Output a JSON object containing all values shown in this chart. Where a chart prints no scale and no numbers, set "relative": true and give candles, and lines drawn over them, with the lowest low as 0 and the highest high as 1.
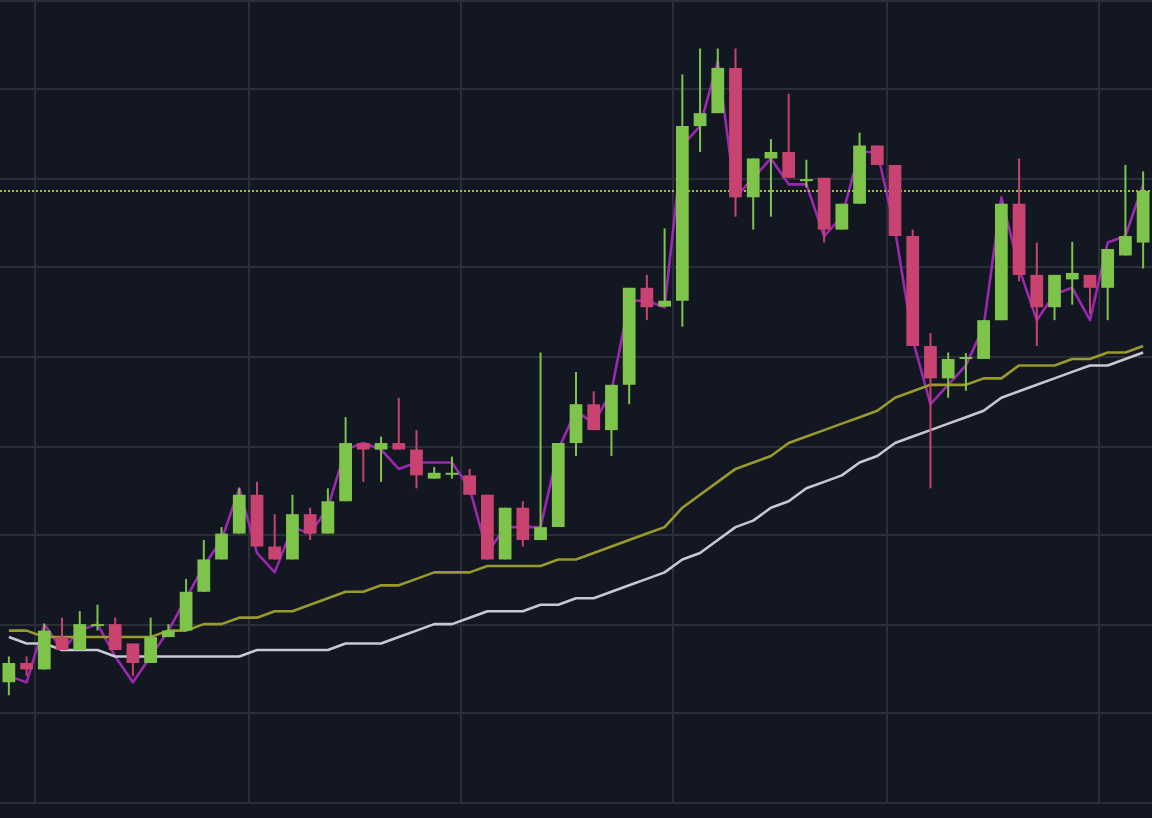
{
  "chart_data": {
    "type": "candlestick",
    "relative": true,
    "grid": true,
    "categories": [
      null,
      null,
      null,
      null,
      null,
      null,
      null,
      null,
      null,
      null,
      null,
      null,
      null,
      null,
      null,
      null,
      null,
      null,
      null,
      null,
      null,
      null,
      null,
      null,
      null,
      null,
      null,
      null,
      null,
      null,
      null,
      null,
      null,
      null,
      null,
      null,
      null,
      null,
      null,
      null,
      null,
      null,
      null,
      null,
      null,
      null,
      null,
      null,
      null,
      null,
      null,
      null,
      null,
      null,
      null,
      null,
      null,
      null,
      null,
      null,
      null,
      null,
      null,
      null,
      null
    ],
    "ohlc": [
      [
        0.02,
        0.06,
        0.0,
        0.05
      ],
      [
        0.05,
        0.06,
        0.03,
        0.04
      ],
      [
        0.04,
        0.11,
        0.04,
        0.1
      ],
      [
        0.09,
        0.12,
        0.07,
        0.07
      ],
      [
        0.07,
        0.13,
        0.07,
        0.11
      ],
      [
        0.11,
        0.14,
        0.1,
        0.11
      ],
      [
        0.11,
        0.12,
        0.07,
        0.07
      ],
      [
        0.08,
        0.08,
        0.03,
        0.05
      ],
      [
        0.05,
        0.12,
        0.05,
        0.09
      ],
      [
        0.09,
        0.11,
        0.09,
        0.1
      ],
      [
        0.1,
        0.18,
        0.1,
        0.16
      ],
      [
        0.16,
        0.24,
        0.16,
        0.21
      ],
      [
        0.21,
        0.26,
        0.21,
        0.25
      ],
      [
        0.25,
        0.32,
        0.25,
        0.31
      ],
      [
        0.31,
        0.33,
        0.23,
        0.23
      ],
      [
        0.23,
        0.28,
        0.21,
        0.21
      ],
      [
        0.21,
        0.31,
        0.21,
        0.28
      ],
      [
        0.28,
        0.29,
        0.24,
        0.25
      ],
      [
        0.25,
        0.32,
        0.25,
        0.3
      ],
      [
        0.3,
        0.43,
        0.3,
        0.39
      ],
      [
        0.39,
        0.39,
        0.33,
        0.38
      ],
      [
        0.38,
        0.4,
        0.33,
        0.39
      ],
      [
        0.39,
        0.46,
        0.38,
        0.38
      ],
      [
        0.38,
        0.41,
        0.32,
        0.34
      ],
      [
        0.335,
        0.353,
        0.335,
        0.344
      ],
      [
        0.341,
        0.369,
        0.335,
        0.344
      ],
      [
        0.34,
        0.35,
        0.31,
        0.31
      ],
      [
        0.31,
        0.31,
        0.21,
        0.21
      ],
      [
        0.21,
        0.29,
        0.21,
        0.29
      ],
      [
        0.29,
        0.3,
        0.23,
        0.24
      ],
      [
        0.24,
        0.53,
        0.24,
        0.26
      ],
      [
        0.26,
        0.39,
        0.26,
        0.39
      ],
      [
        0.39,
        0.5,
        0.37,
        0.45
      ],
      [
        0.45,
        0.47,
        0.41,
        0.41
      ],
      [
        0.41,
        0.48,
        0.37,
        0.48
      ],
      [
        0.48,
        0.63,
        0.45,
        0.63
      ],
      [
        0.63,
        0.65,
        0.58,
        0.6
      ],
      [
        0.601,
        0.722,
        0.601,
        0.61
      ],
      [
        0.61,
        0.96,
        0.57,
        0.88
      ],
      [
        0.88,
        1.0,
        0.84,
        0.9
      ],
      [
        0.9,
        1.0,
        0.9,
        0.97
      ],
      [
        0.97,
        1.0,
        0.74,
        0.77
      ],
      [
        0.77,
        0.83,
        0.72,
        0.83
      ],
      [
        0.83,
        0.86,
        0.74,
        0.84
      ],
      [
        0.84,
        0.93,
        0.8,
        0.8
      ],
      [
        0.795,
        0.828,
        0.785,
        0.798
      ],
      [
        0.8,
        0.8,
        0.7,
        0.72
      ],
      [
        0.72,
        0.76,
        0.72,
        0.76
      ],
      [
        0.76,
        0.87,
        0.76,
        0.85
      ],
      [
        0.85,
        0.85,
        0.82,
        0.82
      ],
      [
        0.82,
        0.82,
        0.71,
        0.71
      ],
      [
        0.71,
        0.72,
        0.54,
        0.54
      ],
      [
        0.54,
        0.56,
        0.32,
        0.49
      ],
      [
        0.49,
        0.53,
        0.46,
        0.52
      ],
      [
        0.52,
        0.529,
        0.471,
        0.523
      ],
      [
        0.52,
        0.58,
        0.52,
        0.58
      ],
      [
        0.58,
        0.76,
        0.58,
        0.76
      ],
      [
        0.76,
        0.83,
        0.64,
        0.65
      ],
      [
        0.65,
        0.7,
        0.54,
        0.6
      ],
      [
        0.6,
        0.65,
        0.58,
        0.65
      ],
      [
        0.643,
        0.701,
        0.604,
        0.653
      ],
      [
        0.65,
        0.65,
        0.59,
        0.63
      ],
      [
        0.63,
        0.69,
        0.58,
        0.69
      ],
      [
        0.68,
        0.82,
        0.68,
        0.71
      ],
      [
        0.7,
        0.81,
        0.66,
        0.78
      ]
    ],
    "series": [
      {
        "type": "line",
        "color": "#9c27b0",
        "values": [
          0.03,
          0.02,
          0.11,
          0.07,
          0.1,
          0.11,
          0.06,
          0.02,
          0.06,
          0.1,
          0.15,
          0.2,
          0.24,
          0.32,
          0.22,
          0.19,
          0.26,
          0.25,
          0.29,
          0.38,
          0.39,
          0.38,
          0.35,
          0.36,
          0.36,
          0.36,
          0.32,
          0.22,
          0.26,
          0.26,
          0.26,
          0.38,
          0.44,
          0.42,
          0.47,
          0.61,
          0.61,
          0.6,
          0.85,
          0.88,
          0.98,
          0.77,
          0.8,
          0.83,
          0.79,
          0.79,
          0.71,
          0.74,
          0.84,
          0.84,
          0.72,
          0.55,
          0.45,
          0.48,
          0.51,
          0.57,
          0.77,
          0.66,
          0.58,
          0.62,
          0.63,
          0.58,
          0.7,
          0.71,
          0.79
        ]
      },
      {
        "type": "line",
        "color": "#9a9a2a",
        "values": [
          0.1,
          0.1,
          0.09,
          0.09,
          0.09,
          0.09,
          0.09,
          0.09,
          0.09,
          0.1,
          0.1,
          0.11,
          0.11,
          0.12,
          0.12,
          0.13,
          0.13,
          0.14,
          0.15,
          0.16,
          0.16,
          0.17,
          0.17,
          0.18,
          0.19,
          0.19,
          0.19,
          0.2,
          0.2,
          0.2,
          0.2,
          0.21,
          0.21,
          0.22,
          0.23,
          0.24,
          0.25,
          0.26,
          0.29,
          0.31,
          0.33,
          0.35,
          0.36,
          0.37,
          0.39,
          0.4,
          0.41,
          0.42,
          0.43,
          0.44,
          0.46,
          0.47,
          0.48,
          0.48,
          0.48,
          0.49,
          0.49,
          0.51,
          0.51,
          0.51,
          0.52,
          0.52,
          0.53,
          0.53,
          0.54
        ]
      },
      {
        "type": "line",
        "color": "#c8c8d2",
        "values": [
          0.09,
          0.08,
          0.08,
          0.07,
          0.07,
          0.07,
          0.06,
          0.06,
          0.06,
          0.06,
          0.06,
          0.06,
          0.06,
          0.06,
          0.07,
          0.07,
          0.07,
          0.07,
          0.07,
          0.08,
          0.08,
          0.08,
          0.09,
          0.1,
          0.11,
          0.11,
          0.12,
          0.13,
          0.13,
          0.13,
          0.14,
          0.14,
          0.15,
          0.15,
          0.16,
          0.17,
          0.18,
          0.19,
          0.21,
          0.22,
          0.24,
          0.26,
          0.27,
          0.29,
          0.3,
          0.32,
          0.33,
          0.34,
          0.36,
          0.37,
          0.39,
          0.4,
          0.41,
          0.42,
          0.43,
          0.44,
          0.46,
          0.47,
          0.48,
          0.49,
          0.5,
          0.51,
          0.51,
          0.52,
          0.53
        ]
      }
    ],
    "ref_lines": [
      {
        "axis": "y",
        "value": 0.78,
        "color": "#9fbf3f",
        "line_style": "dotted"
      }
    ]
  }
}
